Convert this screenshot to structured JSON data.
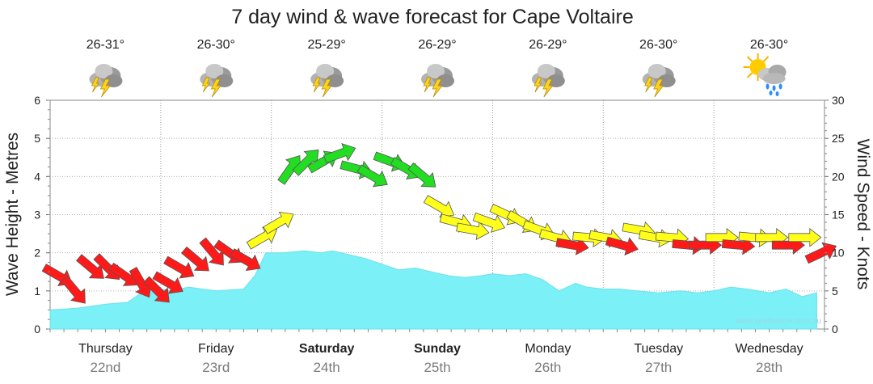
{
  "chart_data": {
    "type": "area",
    "title": "7 day wind & wave forecast for Cape Voltaire",
    "ylabel_left": "Wave Height - Metres",
    "ylabel_right": "Wind Speed - Knots",
    "ylim_left": [
      0,
      6
    ],
    "ylim_right": [
      0,
      30
    ],
    "yticks_left": [
      0,
      1,
      2,
      3,
      4,
      5,
      6
    ],
    "yticks_right": [
      0,
      5,
      10,
      15,
      20,
      25,
      30
    ],
    "watermark": "www.seabreeze.com.au",
    "days": [
      {
        "name": "Thursday",
        "date": "22nd",
        "bold": false,
        "temp": "26-31°",
        "icon": "storm-icon"
      },
      {
        "name": "Friday",
        "date": "23rd",
        "bold": false,
        "temp": "26-30°",
        "icon": "storm-icon"
      },
      {
        "name": "Saturday",
        "date": "24th",
        "bold": true,
        "temp": "25-29°",
        "icon": "storm-icon"
      },
      {
        "name": "Sunday",
        "date": "25th",
        "bold": true,
        "temp": "26-29°",
        "icon": "storm-icon"
      },
      {
        "name": "Monday",
        "date": "26th",
        "bold": false,
        "temp": "26-29°",
        "icon": "storm-icon"
      },
      {
        "name": "Tuesday",
        "date": "27th",
        "bold": false,
        "temp": "26-30°",
        "icon": "storm-icon"
      },
      {
        "name": "Wednesday",
        "date": "28th",
        "bold": false,
        "temp": "26-30°",
        "icon": "sun-rain-icon"
      }
    ],
    "wave_series": {
      "name": "Wave Height",
      "unit": "m",
      "days_offset": [
        0,
        0.25,
        0.5,
        0.7,
        0.85,
        1.0,
        1.1,
        1.25,
        1.5,
        1.75,
        1.85,
        1.95,
        2.1,
        2.3,
        2.45,
        2.55,
        2.7,
        2.85,
        3.0,
        3.15,
        3.3,
        3.45,
        3.6,
        3.75,
        3.9,
        4.0,
        4.15,
        4.3,
        4.45,
        4.6,
        4.75,
        4.85,
        5.0,
        5.15,
        5.3,
        5.5,
        5.7,
        5.85,
        6.0,
        6.15,
        6.3,
        6.5,
        6.65,
        6.8,
        6.93
      ],
      "values": [
        0.5,
        0.55,
        0.65,
        0.7,
        1.0,
        1.05,
        1.0,
        1.1,
        1.0,
        1.05,
        1.4,
        2.0,
        2.0,
        2.05,
        2.0,
        2.05,
        1.95,
        1.85,
        1.7,
        1.55,
        1.6,
        1.5,
        1.4,
        1.35,
        1.4,
        1.45,
        1.4,
        1.45,
        1.3,
        1.0,
        1.2,
        1.1,
        1.05,
        1.05,
        1.0,
        0.95,
        1.0,
        0.95,
        1.0,
        1.1,
        1.05,
        0.95,
        1.05,
        0.85,
        0.95
      ]
    },
    "wind_series": {
      "name": "Wind Speed",
      "unit": "knots",
      "color_thresholds": {
        "red_max": 12,
        "yellow_max": 19,
        "colors": {
          "red": "#ff1a1a",
          "yellow": "#ffff1a",
          "green": "#22dd22"
        }
      },
      "days_offset": [
        0.0,
        0.15,
        0.3,
        0.45,
        0.6,
        0.75,
        0.9,
        1.0,
        1.1,
        1.25,
        1.4,
        1.55,
        1.7,
        1.85,
        2.0,
        2.1,
        2.25,
        2.4,
        2.55,
        2.7,
        2.85,
        3.0,
        3.15,
        3.3,
        3.45,
        3.6,
        3.75,
        3.9,
        4.05,
        4.2,
        4.35,
        4.5,
        4.65,
        4.8,
        4.95,
        5.1,
        5.25,
        5.4,
        5.55,
        5.7,
        5.85,
        6.0,
        6.15,
        6.3,
        6.45,
        6.6,
        6.75,
        6.9
      ],
      "values": [
        7,
        5,
        8,
        8,
        7,
        6,
        5,
        6,
        8,
        9,
        10,
        10,
        9,
        12,
        14,
        21,
        22,
        22,
        23,
        21,
        20,
        22,
        21,
        20,
        16,
        14,
        13,
        14,
        15,
        14,
        13,
        12,
        11,
        12,
        12,
        11,
        13,
        12,
        12,
        11,
        11,
        12,
        11,
        12,
        12,
        11,
        12,
        10
      ],
      "directions_deg": [
        300,
        320,
        310,
        315,
        305,
        330,
        315,
        300,
        300,
        310,
        320,
        305,
        300,
        240,
        240,
        215,
        225,
        240,
        250,
        285,
        300,
        290,
        300,
        310,
        300,
        285,
        280,
        290,
        295,
        300,
        290,
        285,
        280,
        275,
        280,
        285,
        280,
        280,
        275,
        275,
        270,
        270,
        275,
        275,
        270,
        270,
        270,
        245
      ]
    }
  }
}
